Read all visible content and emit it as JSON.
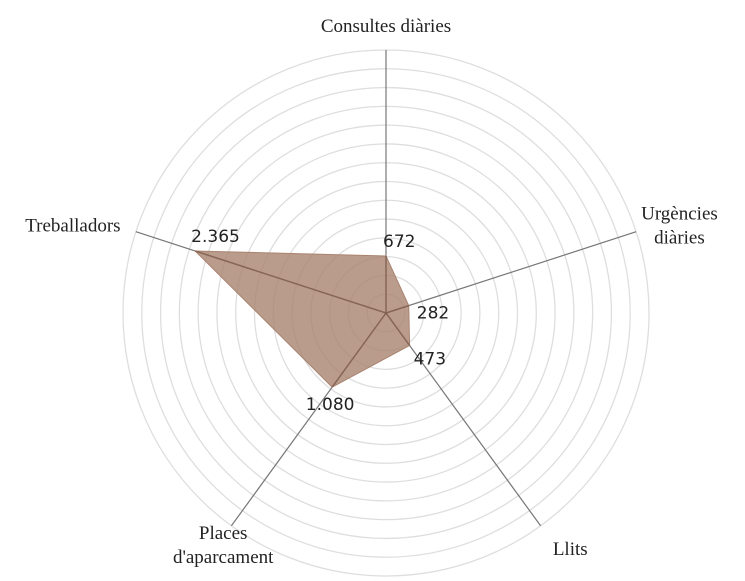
{
  "chart_data": {
    "type": "radar",
    "categories": [
      "Consultes diàries",
      "Urgències diàries",
      "Llits",
      "Places d'aparcament",
      "Treballadors"
    ],
    "values": [
      672,
      282,
      473,
      1080,
      2365
    ],
    "value_labels": [
      "672",
      "282",
      "473",
      "1.080",
      "2.365"
    ],
    "color": "#a9836f",
    "rlim": [
      0,
      3100
    ]
  }
}
